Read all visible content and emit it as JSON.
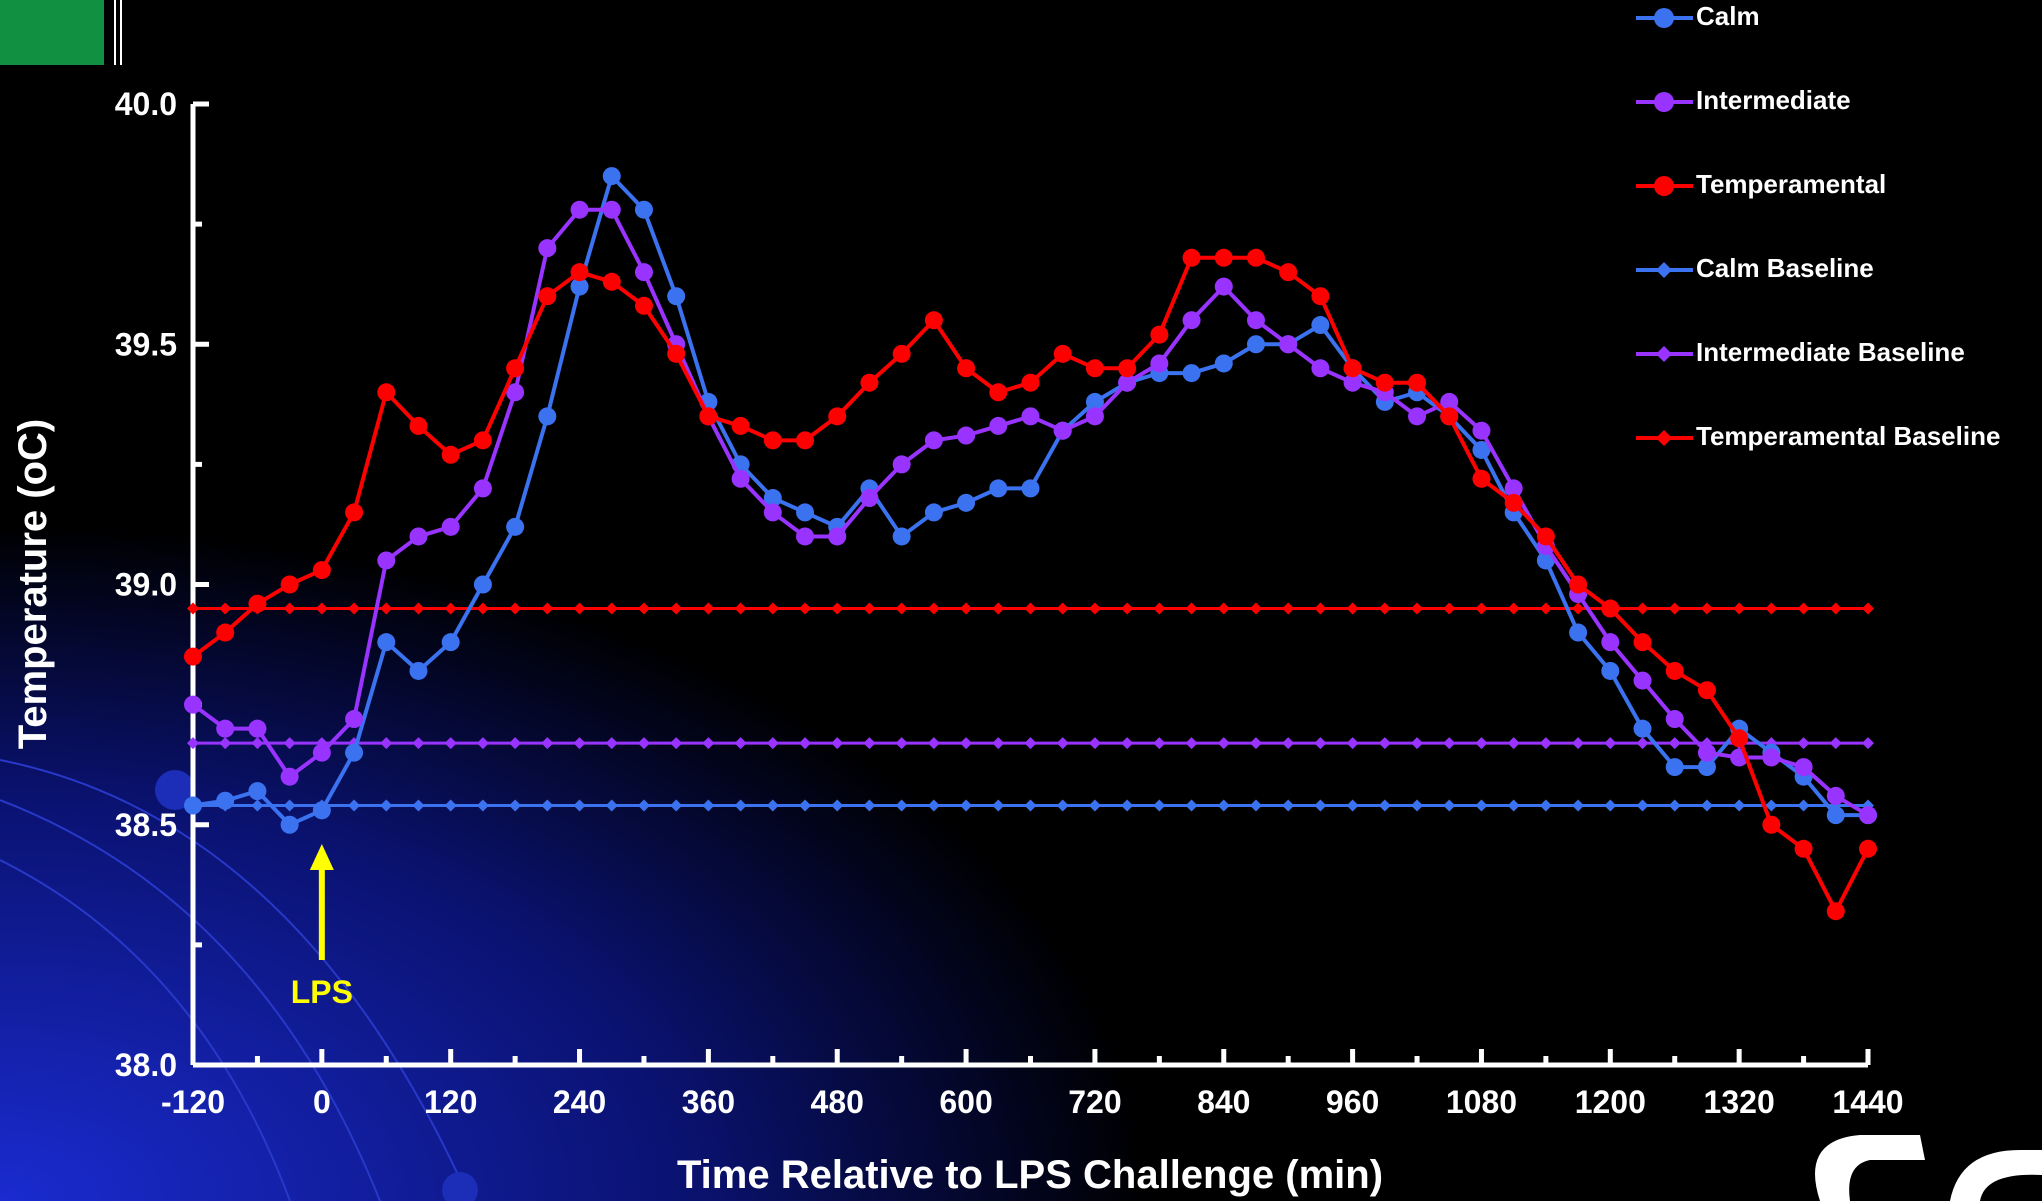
{
  "chart_data": {
    "type": "line",
    "x_label": "Time Relative to LPS Challenge (min)",
    "y_label": "Temperature (oC)",
    "x": [
      -120,
      -90,
      -60,
      -30,
      0,
      30,
      60,
      90,
      120,
      150,
      180,
      210,
      240,
      270,
      300,
      330,
      360,
      390,
      420,
      450,
      480,
      510,
      540,
      570,
      600,
      630,
      660,
      690,
      720,
      750,
      780,
      810,
      840,
      870,
      900,
      930,
      960,
      990,
      1020,
      1050,
      1080,
      1110,
      1140,
      1170,
      1200,
      1230,
      1260,
      1290,
      1320,
      1350,
      1380,
      1410,
      1440
    ],
    "series": [
      {
        "name": "Calm",
        "color": "#3b72f0",
        "marker": "circle",
        "values": [
          38.54,
          38.55,
          38.57,
          38.5,
          38.53,
          38.65,
          38.88,
          38.82,
          38.88,
          39.0,
          39.12,
          39.35,
          39.62,
          39.85,
          39.78,
          39.6,
          39.38,
          39.25,
          39.18,
          39.15,
          39.12,
          39.2,
          39.1,
          39.15,
          39.17,
          39.2,
          39.2,
          39.32,
          39.38,
          39.42,
          39.44,
          39.44,
          39.46,
          39.5,
          39.5,
          39.54,
          39.45,
          39.38,
          39.4,
          39.35,
          39.28,
          39.15,
          39.05,
          38.9,
          38.82,
          38.7,
          38.62,
          38.62,
          38.7,
          38.65,
          38.6,
          38.52,
          38.52
        ]
      },
      {
        "name": "Intermediate",
        "color": "#9933ff",
        "marker": "circle",
        "values": [
          38.75,
          38.7,
          38.7,
          38.6,
          38.65,
          38.72,
          39.05,
          39.1,
          39.12,
          39.2,
          39.4,
          39.7,
          39.78,
          39.78,
          39.65,
          39.5,
          39.35,
          39.22,
          39.15,
          39.1,
          39.1,
          39.18,
          39.25,
          39.3,
          39.31,
          39.33,
          39.35,
          39.32,
          39.35,
          39.42,
          39.46,
          39.55,
          39.62,
          39.55,
          39.5,
          39.45,
          39.42,
          39.4,
          39.35,
          39.38,
          39.32,
          39.2,
          39.08,
          38.98,
          38.88,
          38.8,
          38.72,
          38.65,
          38.64,
          38.64,
          38.62,
          38.56,
          38.52
        ]
      },
      {
        "name": "Temperamental",
        "color": "#ff0000",
        "marker": "circle",
        "values": [
          38.85,
          38.9,
          38.96,
          39.0,
          39.03,
          39.15,
          39.4,
          39.33,
          39.27,
          39.3,
          39.45,
          39.6,
          39.65,
          39.63,
          39.58,
          39.48,
          39.35,
          39.33,
          39.3,
          39.3,
          39.35,
          39.42,
          39.48,
          39.55,
          39.45,
          39.4,
          39.42,
          39.48,
          39.45,
          39.45,
          39.52,
          39.68,
          39.68,
          39.68,
          39.65,
          39.6,
          39.45,
          39.42,
          39.42,
          39.35,
          39.22,
          39.17,
          39.1,
          39.0,
          38.95,
          38.88,
          38.82,
          38.78,
          38.68,
          38.5,
          38.45,
          38.32,
          38.45
        ]
      },
      {
        "name": "Calm Baseline",
        "color": "#3b72f0",
        "marker": "diamond",
        "values": [
          38.54,
          38.54,
          38.54,
          38.54,
          38.54,
          38.54,
          38.54,
          38.54,
          38.54,
          38.54,
          38.54,
          38.54,
          38.54,
          38.54,
          38.54,
          38.54,
          38.54,
          38.54,
          38.54,
          38.54,
          38.54,
          38.54,
          38.54,
          38.54,
          38.54,
          38.54,
          38.54,
          38.54,
          38.54,
          38.54,
          38.54,
          38.54,
          38.54,
          38.54,
          38.54,
          38.54,
          38.54,
          38.54,
          38.54,
          38.54,
          38.54,
          38.54,
          38.54,
          38.54,
          38.54,
          38.54,
          38.54,
          38.54,
          38.54,
          38.54,
          38.54,
          38.54,
          38.54
        ]
      },
      {
        "name": "Intermediate Baseline",
        "color": "#9933ff",
        "marker": "diamond",
        "values": [
          38.67,
          38.67,
          38.67,
          38.67,
          38.67,
          38.67,
          38.67,
          38.67,
          38.67,
          38.67,
          38.67,
          38.67,
          38.67,
          38.67,
          38.67,
          38.67,
          38.67,
          38.67,
          38.67,
          38.67,
          38.67,
          38.67,
          38.67,
          38.67,
          38.67,
          38.67,
          38.67,
          38.67,
          38.67,
          38.67,
          38.67,
          38.67,
          38.67,
          38.67,
          38.67,
          38.67,
          38.67,
          38.67,
          38.67,
          38.67,
          38.67,
          38.67,
          38.67,
          38.67,
          38.67,
          38.67,
          38.67,
          38.67,
          38.67,
          38.67,
          38.67,
          38.67,
          38.67
        ]
      },
      {
        "name": "Temperamental Baseline",
        "color": "#ff0000",
        "marker": "diamond",
        "values": [
          38.95,
          38.95,
          38.95,
          38.95,
          38.95,
          38.95,
          38.95,
          38.95,
          38.95,
          38.95,
          38.95,
          38.95,
          38.95,
          38.95,
          38.95,
          38.95,
          38.95,
          38.95,
          38.95,
          38.95,
          38.95,
          38.95,
          38.95,
          38.95,
          38.95,
          38.95,
          38.95,
          38.95,
          38.95,
          38.95,
          38.95,
          38.95,
          38.95,
          38.95,
          38.95,
          38.95,
          38.95,
          38.95,
          38.95,
          38.95,
          38.95,
          38.95,
          38.95,
          38.95,
          38.95,
          38.95,
          38.95,
          38.95,
          38.95,
          38.95,
          38.95,
          38.95,
          38.95
        ]
      }
    ],
    "xlim": [
      -120,
      1440
    ],
    "xticks": [
      -120,
      0,
      120,
      240,
      360,
      480,
      600,
      720,
      840,
      960,
      1080,
      1200,
      1320,
      1440
    ],
    "ylim": [
      38,
      40
    ],
    "yticks": [
      {
        "value": 38,
        "label": "38.0"
      },
      38.5,
      {
        "value": 39,
        "label": "39.0"
      },
      39.5,
      {
        "value": 40,
        "label": "40.0"
      }
    ],
    "grid": false,
    "legend": "top-right",
    "annotations": [
      {
        "text": "LPS",
        "x": 0,
        "color": "#ffff00"
      }
    ]
  }
}
